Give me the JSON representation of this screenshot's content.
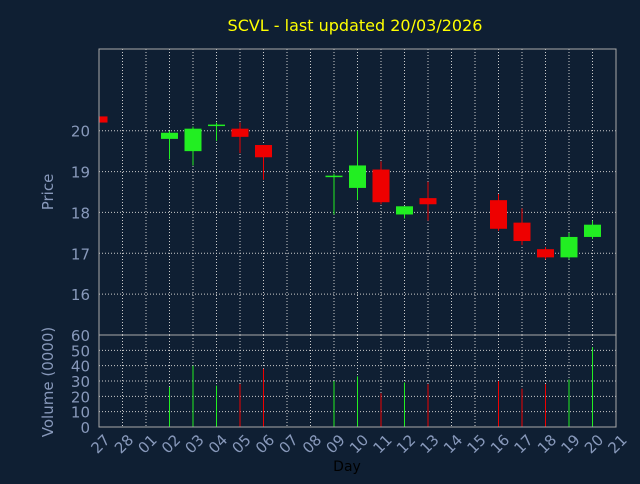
{
  "chart_data": {
    "type": "candlestick",
    "title": "SCVL - last updated 20/03/2026",
    "xlabel": "Day",
    "price_panel": {
      "ylabel": "Price",
      "ylim": [
        15,
        22
      ],
      "yticks": [
        16,
        17,
        18,
        19,
        20
      ],
      "grid": true
    },
    "volume_panel": {
      "ylabel": "Volume (0000)",
      "ylim": [
        0,
        60
      ],
      "yticks": [
        0,
        10,
        20,
        30,
        40,
        50,
        60
      ],
      "grid": true
    },
    "x_ticks": [
      "27",
      "28",
      "01",
      "02",
      "03",
      "04",
      "05",
      "06",
      "07",
      "08",
      "09",
      "10",
      "11",
      "12",
      "13",
      "14",
      "15",
      "16",
      "17",
      "18",
      "19",
      "20",
      "21"
    ],
    "candles": [
      {
        "x": "27",
        "open": 20.35,
        "high": 20.35,
        "low": 20.2,
        "close": 20.2,
        "volume": 0
      },
      {
        "x": "02",
        "open": 19.8,
        "high": 20.0,
        "low": 19.3,
        "close": 19.95,
        "volume": 26
      },
      {
        "x": "03",
        "open": 19.5,
        "high": 20.1,
        "low": 19.15,
        "close": 20.05,
        "volume": 40
      },
      {
        "x": "04",
        "open": 20.15,
        "high": 20.2,
        "low": 19.75,
        "close": 20.15,
        "volume": 27
      },
      {
        "x": "05",
        "open": 20.05,
        "high": 20.2,
        "low": 19.45,
        "close": 19.85,
        "volume": 28
      },
      {
        "x": "06",
        "open": 19.65,
        "high": 19.65,
        "low": 18.8,
        "close": 19.35,
        "volume": 38
      },
      {
        "x": "09",
        "open": 18.9,
        "high": 18.95,
        "low": 17.95,
        "close": 18.9,
        "volume": 30
      },
      {
        "x": "10",
        "open": 18.6,
        "high": 20.0,
        "low": 18.3,
        "close": 19.15,
        "volume": 33
      },
      {
        "x": "11",
        "open": 19.05,
        "high": 19.25,
        "low": 18.2,
        "close": 18.25,
        "volume": 22
      },
      {
        "x": "12",
        "open": 17.95,
        "high": 18.15,
        "low": 17.85,
        "close": 18.15,
        "volume": 29
      },
      {
        "x": "13",
        "open": 18.35,
        "high": 18.75,
        "low": 17.8,
        "close": 18.2,
        "volume": 28
      },
      {
        "x": "16",
        "open": 18.3,
        "high": 18.45,
        "low": 17.55,
        "close": 17.6,
        "volume": 30
      },
      {
        "x": "17",
        "open": 17.75,
        "high": 18.1,
        "low": 17.2,
        "close": 17.3,
        "volume": 25
      },
      {
        "x": "18",
        "open": 17.1,
        "high": 17.15,
        "low": 16.85,
        "close": 16.9,
        "volume": 28
      },
      {
        "x": "19",
        "open": 16.9,
        "high": 17.5,
        "low": 16.85,
        "close": 17.4,
        "volume": 31
      },
      {
        "x": "20",
        "open": 17.4,
        "high": 17.8,
        "low": 17.35,
        "close": 17.7,
        "volume": 52
      }
    ],
    "colors": {
      "background": "#0f1f33",
      "up": "#22ee22",
      "down": "#ee0000",
      "grid": "#cccccc",
      "frame": "#aaaaaa",
      "axis_text": "#8899bb",
      "title_text": "#ffff00"
    }
  }
}
